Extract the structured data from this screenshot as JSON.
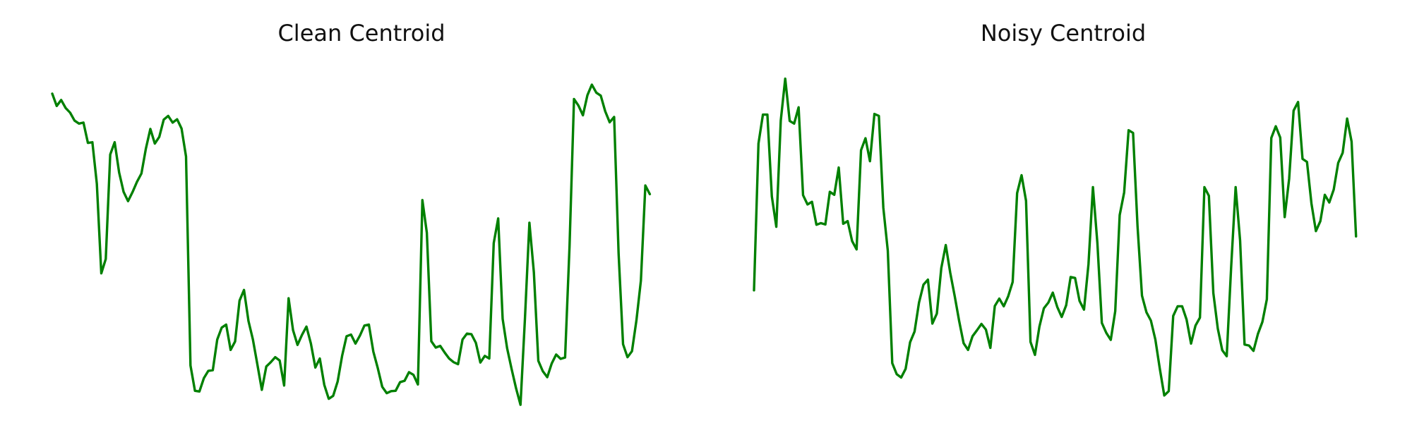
{
  "figure": {
    "titles": [
      "Clean Centroid",
      "Noisy Centroid"
    ]
  },
  "chart_data": [
    {
      "type": "line",
      "title": "Clean Centroid",
      "xlabel": "",
      "ylabel": "",
      "grid": false,
      "axes_visible": false,
      "xlim": [
        0,
        139
      ],
      "ylim": [
        0,
        1
      ],
      "color": "#008000",
      "series": [
        {
          "values": [
            0.905,
            0.868,
            0.886,
            0.862,
            0.848,
            0.824,
            0.815,
            0.818,
            0.757,
            0.759,
            0.634,
            0.365,
            0.408,
            0.722,
            0.759,
            0.668,
            0.61,
            0.582,
            0.609,
            0.64,
            0.665,
            0.74,
            0.799,
            0.755,
            0.775,
            0.827,
            0.838,
            0.818,
            0.828,
            0.8,
            0.716,
            0.088,
            0.012,
            0.01,
            0.05,
            0.072,
            0.074,
            0.166,
            0.202,
            0.211,
            0.135,
            0.16,
            0.283,
            0.315,
            0.222,
            0.166,
            0.091,
            0.015,
            0.085,
            0.098,
            0.113,
            0.103,
            0.028,
            0.29,
            0.194,
            0.15,
            0.18,
            0.205,
            0.154,
            0.082,
            0.109,
            0.03,
            -0.012,
            -0.003,
            0.04,
            0.117,
            0.176,
            0.181,
            0.154,
            0.178,
            0.208,
            0.211,
            0.13,
            0.08,
            0.024,
            0.005,
            0.011,
            0.012,
            0.038,
            0.042,
            0.068,
            0.06,
            0.031,
            0.585,
            0.487,
            0.161,
            0.142,
            0.147,
            0.127,
            0.109,
            0.098,
            0.092,
            0.166,
            0.184,
            0.182,
            0.156,
            0.097,
            0.117,
            0.109,
            0.456,
            0.53,
            0.228,
            0.14,
            0.078,
            0.02,
            -0.03,
            0.229,
            0.517,
            0.368,
            0.102,
            0.071,
            0.053,
            0.094,
            0.121,
            0.108,
            0.112,
            0.447,
            0.889,
            0.869,
            0.84,
            0.9,
            0.932,
            0.908,
            0.899,
            0.852,
            0.819,
            0.835,
            0.425,
            0.152,
            0.113,
            0.131,
            0.224,
            0.343,
            0.629,
            0.603
          ]
        }
      ]
    },
    {
      "type": "line",
      "title": "Noisy Centroid",
      "xlabel": "",
      "ylabel": "",
      "grid": false,
      "axes_visible": false,
      "xlim": [
        0,
        139
      ],
      "ylim": [
        0,
        1
      ],
      "color": "#008000",
      "series": [
        {
          "values": [
            0.314,
            0.755,
            0.842,
            0.842,
            0.596,
            0.505,
            0.824,
            0.95,
            0.823,
            0.815,
            0.864,
            0.6,
            0.572,
            0.58,
            0.511,
            0.516,
            0.512,
            0.61,
            0.601,
            0.683,
            0.514,
            0.522,
            0.462,
            0.437,
            0.735,
            0.771,
            0.702,
            0.844,
            0.838,
            0.562,
            0.433,
            0.095,
            0.062,
            0.052,
            0.078,
            0.158,
            0.19,
            0.277,
            0.331,
            0.346,
            0.214,
            0.244,
            0.381,
            0.45,
            0.367,
            0.297,
            0.222,
            0.155,
            0.135,
            0.176,
            0.194,
            0.213,
            0.196,
            0.141,
            0.267,
            0.289,
            0.266,
            0.296,
            0.339,
            0.606,
            0.66,
            0.583,
            0.159,
            0.12,
            0.205,
            0.26,
            0.277,
            0.307,
            0.264,
            0.234,
            0.269,
            0.354,
            0.351,
            0.282,
            0.256,
            0.392,
            0.624,
            0.456,
            0.216,
            0.186,
            0.165,
            0.251,
            0.54,
            0.608,
            0.795,
            0.787,
            0.507,
            0.298,
            0.248,
            0.223,
            0.166,
            0.078,
            -0.002,
            0.011,
            0.237,
            0.266,
            0.266,
            0.226,
            0.154,
            0.208,
            0.232,
            0.624,
            0.598,
            0.306,
            0.199,
            0.134,
            0.116,
            0.385,
            0.624,
            0.464,
            0.151,
            0.148,
            0.132,
            0.183,
            0.219,
            0.287,
            0.772,
            0.807,
            0.773,
            0.534,
            0.649,
            0.854,
            0.88,
            0.709,
            0.7,
            0.575,
            0.492,
            0.522,
            0.601,
            0.578,
            0.617,
            0.697,
            0.727,
            0.83,
            0.761,
            0.476
          ]
        }
      ]
    }
  ]
}
